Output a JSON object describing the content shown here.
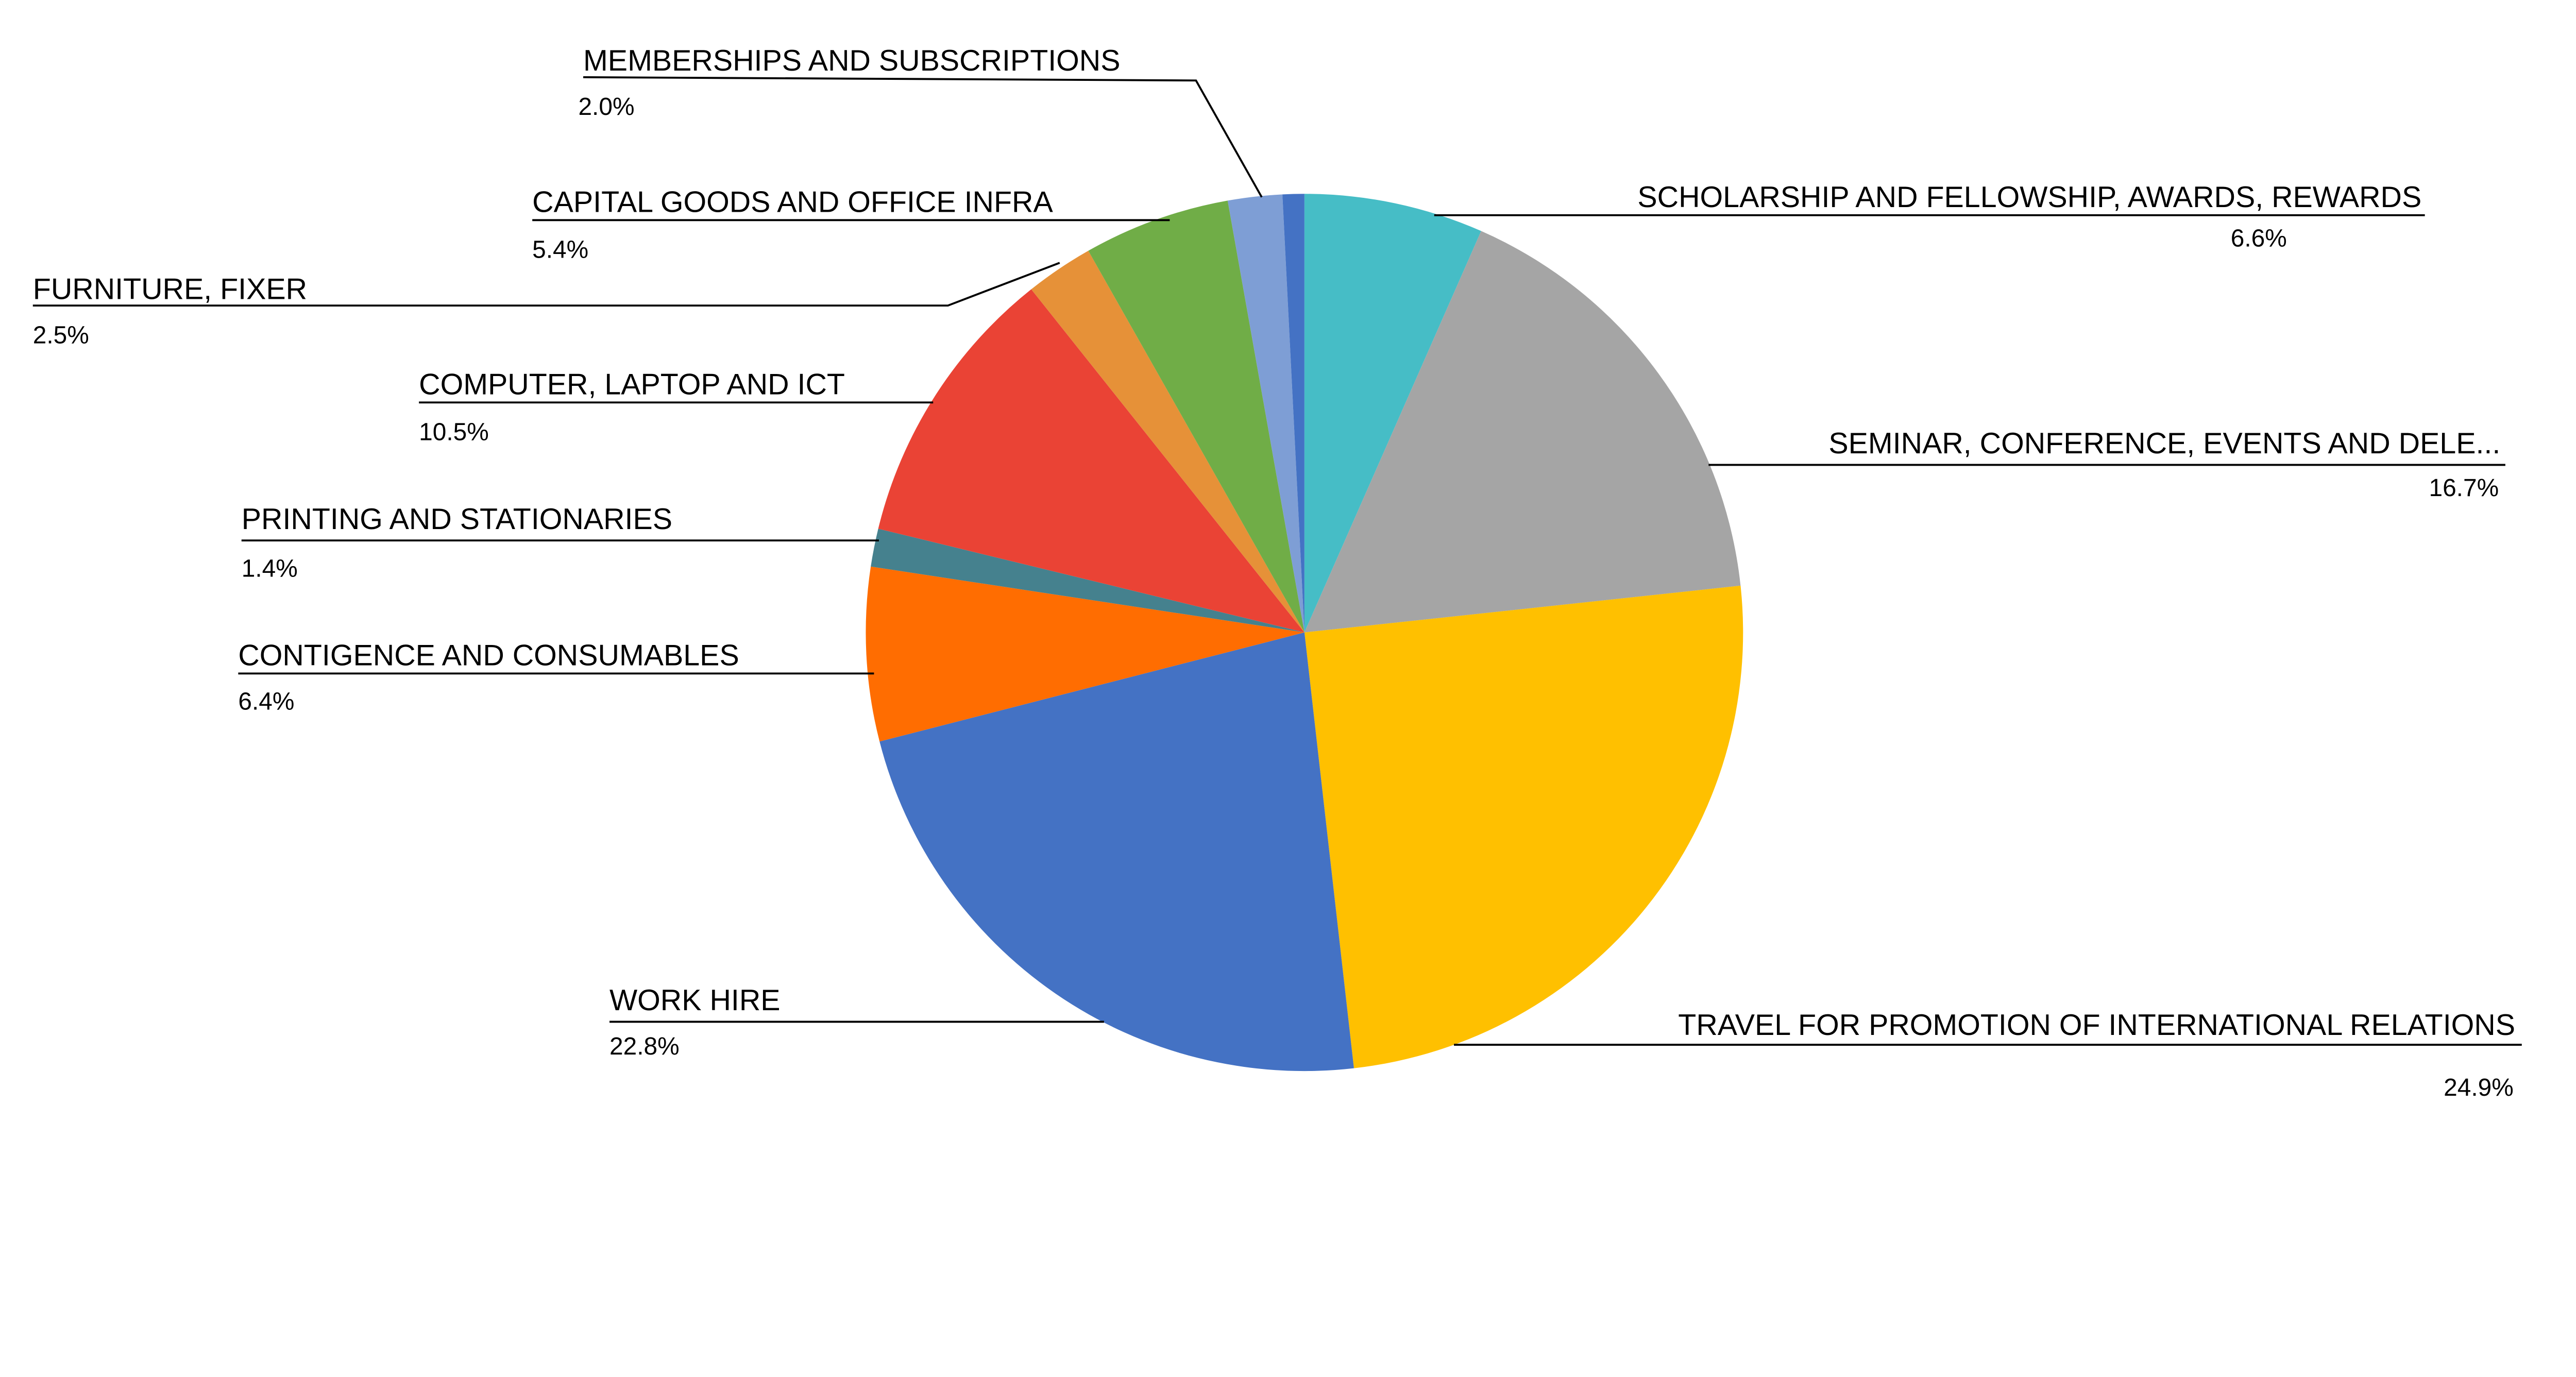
{
  "chart_data": {
    "type": "pie",
    "start_angle": "12 o'clock",
    "direction": "clockwise",
    "legend": "none (callout labels)",
    "slices": [
      {
        "label": "SCHOLARSHIP AND FELLOWSHIP, AWARDS, REWARDS",
        "value": 6.6,
        "value_label": "6.6%",
        "color": "#46BDC6"
      },
      {
        "label": "SEMINAR, CONFERENCE, EVENTS AND DELE...",
        "value": 16.7,
        "value_label": "16.7%",
        "color": "#A5A5A5"
      },
      {
        "label": "TRAVEL FOR PROMOTION OF INTERNATIONAL RELATIONS",
        "value": 24.9,
        "value_label": "24.9%",
        "color": "#FFC000"
      },
      {
        "label": "WORK HIRE",
        "value": 22.8,
        "value_label": "22.8%",
        "color": "#4472C4"
      },
      {
        "label": "CONTIGENCE AND CONSUMABLES",
        "value": 6.4,
        "value_label": "6.4%",
        "color": "#FF6D01"
      },
      {
        "label": "PRINTING AND STATIONARIES",
        "value": 1.4,
        "value_label": "1.4%",
        "color": "#45818E"
      },
      {
        "label": "COMPUTER, LAPTOP AND ICT",
        "value": 10.5,
        "value_label": "10.5%",
        "color": "#EA4335"
      },
      {
        "label": "FURNITURE, FIXER",
        "value": 2.5,
        "value_label": "2.5%",
        "color": "#E69138"
      },
      {
        "label": "CAPITAL GOODS AND OFFICE INFRA",
        "value": 5.4,
        "value_label": "5.4%",
        "color": "#70AD47"
      },
      {
        "label": "MEMBERSHIPS AND SUBSCRIPTIONS",
        "value": 2.0,
        "value_label": "2.0%",
        "color": "#7E9ED5"
      },
      {
        "label": "",
        "value": 0.8,
        "value_label": "",
        "color": "#4472C4"
      }
    ]
  }
}
